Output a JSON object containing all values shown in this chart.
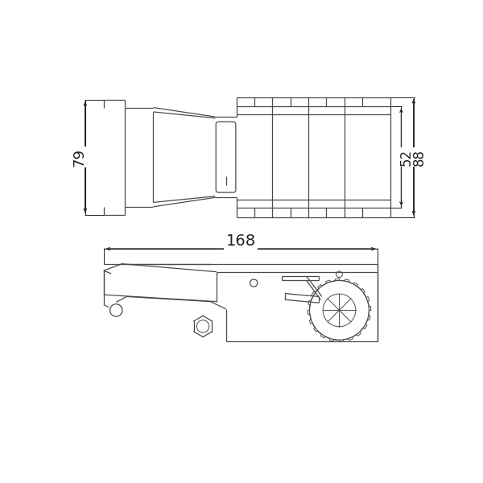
{
  "bg_color": "#ffffff",
  "line_color": "#4a4a4a",
  "dim_color": "#222222",
  "dim_79": "79",
  "dim_52": "52",
  "dim_88": "88",
  "dim_168": "168"
}
